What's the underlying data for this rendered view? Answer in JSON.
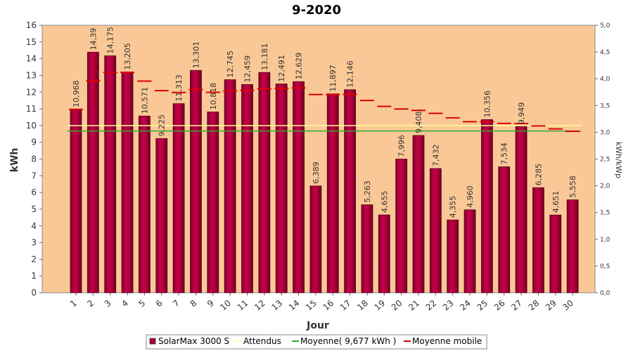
{
  "chart_data": {
    "type": "bar",
    "title": "9-2020",
    "xlabel": "Jour",
    "ylabel": "kWh",
    "ylabel_right": "kWh/kWp",
    "ylim": [
      0,
      16
    ],
    "ylim_right": [
      0,
      5
    ],
    "y_ticks": [
      "0",
      "1",
      "2",
      "3",
      "4",
      "5",
      "6",
      "7",
      "8",
      "9",
      "10",
      "11",
      "12",
      "13",
      "14",
      "15",
      "16"
    ],
    "y_ticks_right": [
      "0,0",
      "0,5",
      "1,0",
      "1,5",
      "2,0",
      "2,5",
      "3,0",
      "3,5",
      "4,0",
      "4,5",
      "5,0"
    ],
    "categories": [
      "1",
      "2",
      "3",
      "4",
      "5",
      "6",
      "7",
      "8",
      "9",
      "10",
      "11",
      "12",
      "13",
      "14",
      "15",
      "16",
      "17",
      "18",
      "19",
      "20",
      "21",
      "22",
      "23",
      "24",
      "25",
      "26",
      "27",
      "28",
      "29",
      "30"
    ],
    "series": [
      {
        "name": "SolarMax 3000 S",
        "type": "bar",
        "color": "#b0003a",
        "values": [
          10.968,
          14.39,
          14.175,
          13.205,
          10.571,
          9.225,
          11.313,
          13.301,
          10.818,
          12.745,
          12.459,
          13.181,
          12.491,
          12.629,
          6.389,
          11.897,
          12.146,
          5.263,
          4.655,
          7.996,
          9.408,
          7.432,
          4.355,
          4.96,
          10.356,
          7.534,
          9.949,
          6.285,
          4.651,
          5.558
        ],
        "labels": [
          "10,968",
          "14,39",
          "14,175",
          "13,205",
          "10,571",
          "9,225",
          "11,313",
          "13,301",
          "10,818",
          "12,745",
          "12,459",
          "13,181",
          "12,491",
          "12,629",
          "6,389",
          "11,897",
          "12,146",
          "5,263",
          "4,655",
          "7,996",
          "9,408",
          "7,432",
          "4,355",
          "4,960",
          "10,356",
          "7,534",
          "9,949",
          "6,285",
          "4,651",
          "5,558"
        ]
      },
      {
        "name": "Attendus",
        "type": "line",
        "color": "#ffff99",
        "values": [
          10,
          10,
          10,
          10,
          10,
          10,
          10,
          10,
          10,
          10,
          10,
          10,
          10,
          10,
          10,
          10,
          10,
          10,
          10,
          10,
          10,
          10,
          10,
          10,
          10,
          10,
          10,
          10,
          10,
          10
        ]
      },
      {
        "name": "Moyenne( 9,677 kWh )",
        "type": "line",
        "color": "#33aa33",
        "values": [
          9.677,
          9.677,
          9.677,
          9.677,
          9.677,
          9.677,
          9.677,
          9.677,
          9.677,
          9.677,
          9.677,
          9.677,
          9.677,
          9.677,
          9.677,
          9.677,
          9.677,
          9.677,
          9.677,
          9.677,
          9.677,
          9.677,
          9.677,
          9.677,
          9.677,
          9.677,
          9.677,
          9.677,
          9.677,
          9.677
        ]
      },
      {
        "name": "Moyenne mobile",
        "type": "step",
        "color": "#dd0000",
        "values": [
          10.97,
          12.68,
          13.18,
          13.18,
          12.66,
          12.09,
          11.98,
          12.15,
          11.99,
          12.07,
          12.11,
          12.2,
          12.22,
          12.25,
          11.86,
          11.86,
          11.87,
          11.5,
          11.15,
          10.99,
          10.91,
          10.73,
          10.46,
          10.23,
          10.23,
          10.13,
          10.12,
          9.98,
          9.8,
          9.66
        ]
      }
    ],
    "legend_position": "bottom-center",
    "grid": false,
    "plot_background": "#fac896"
  }
}
